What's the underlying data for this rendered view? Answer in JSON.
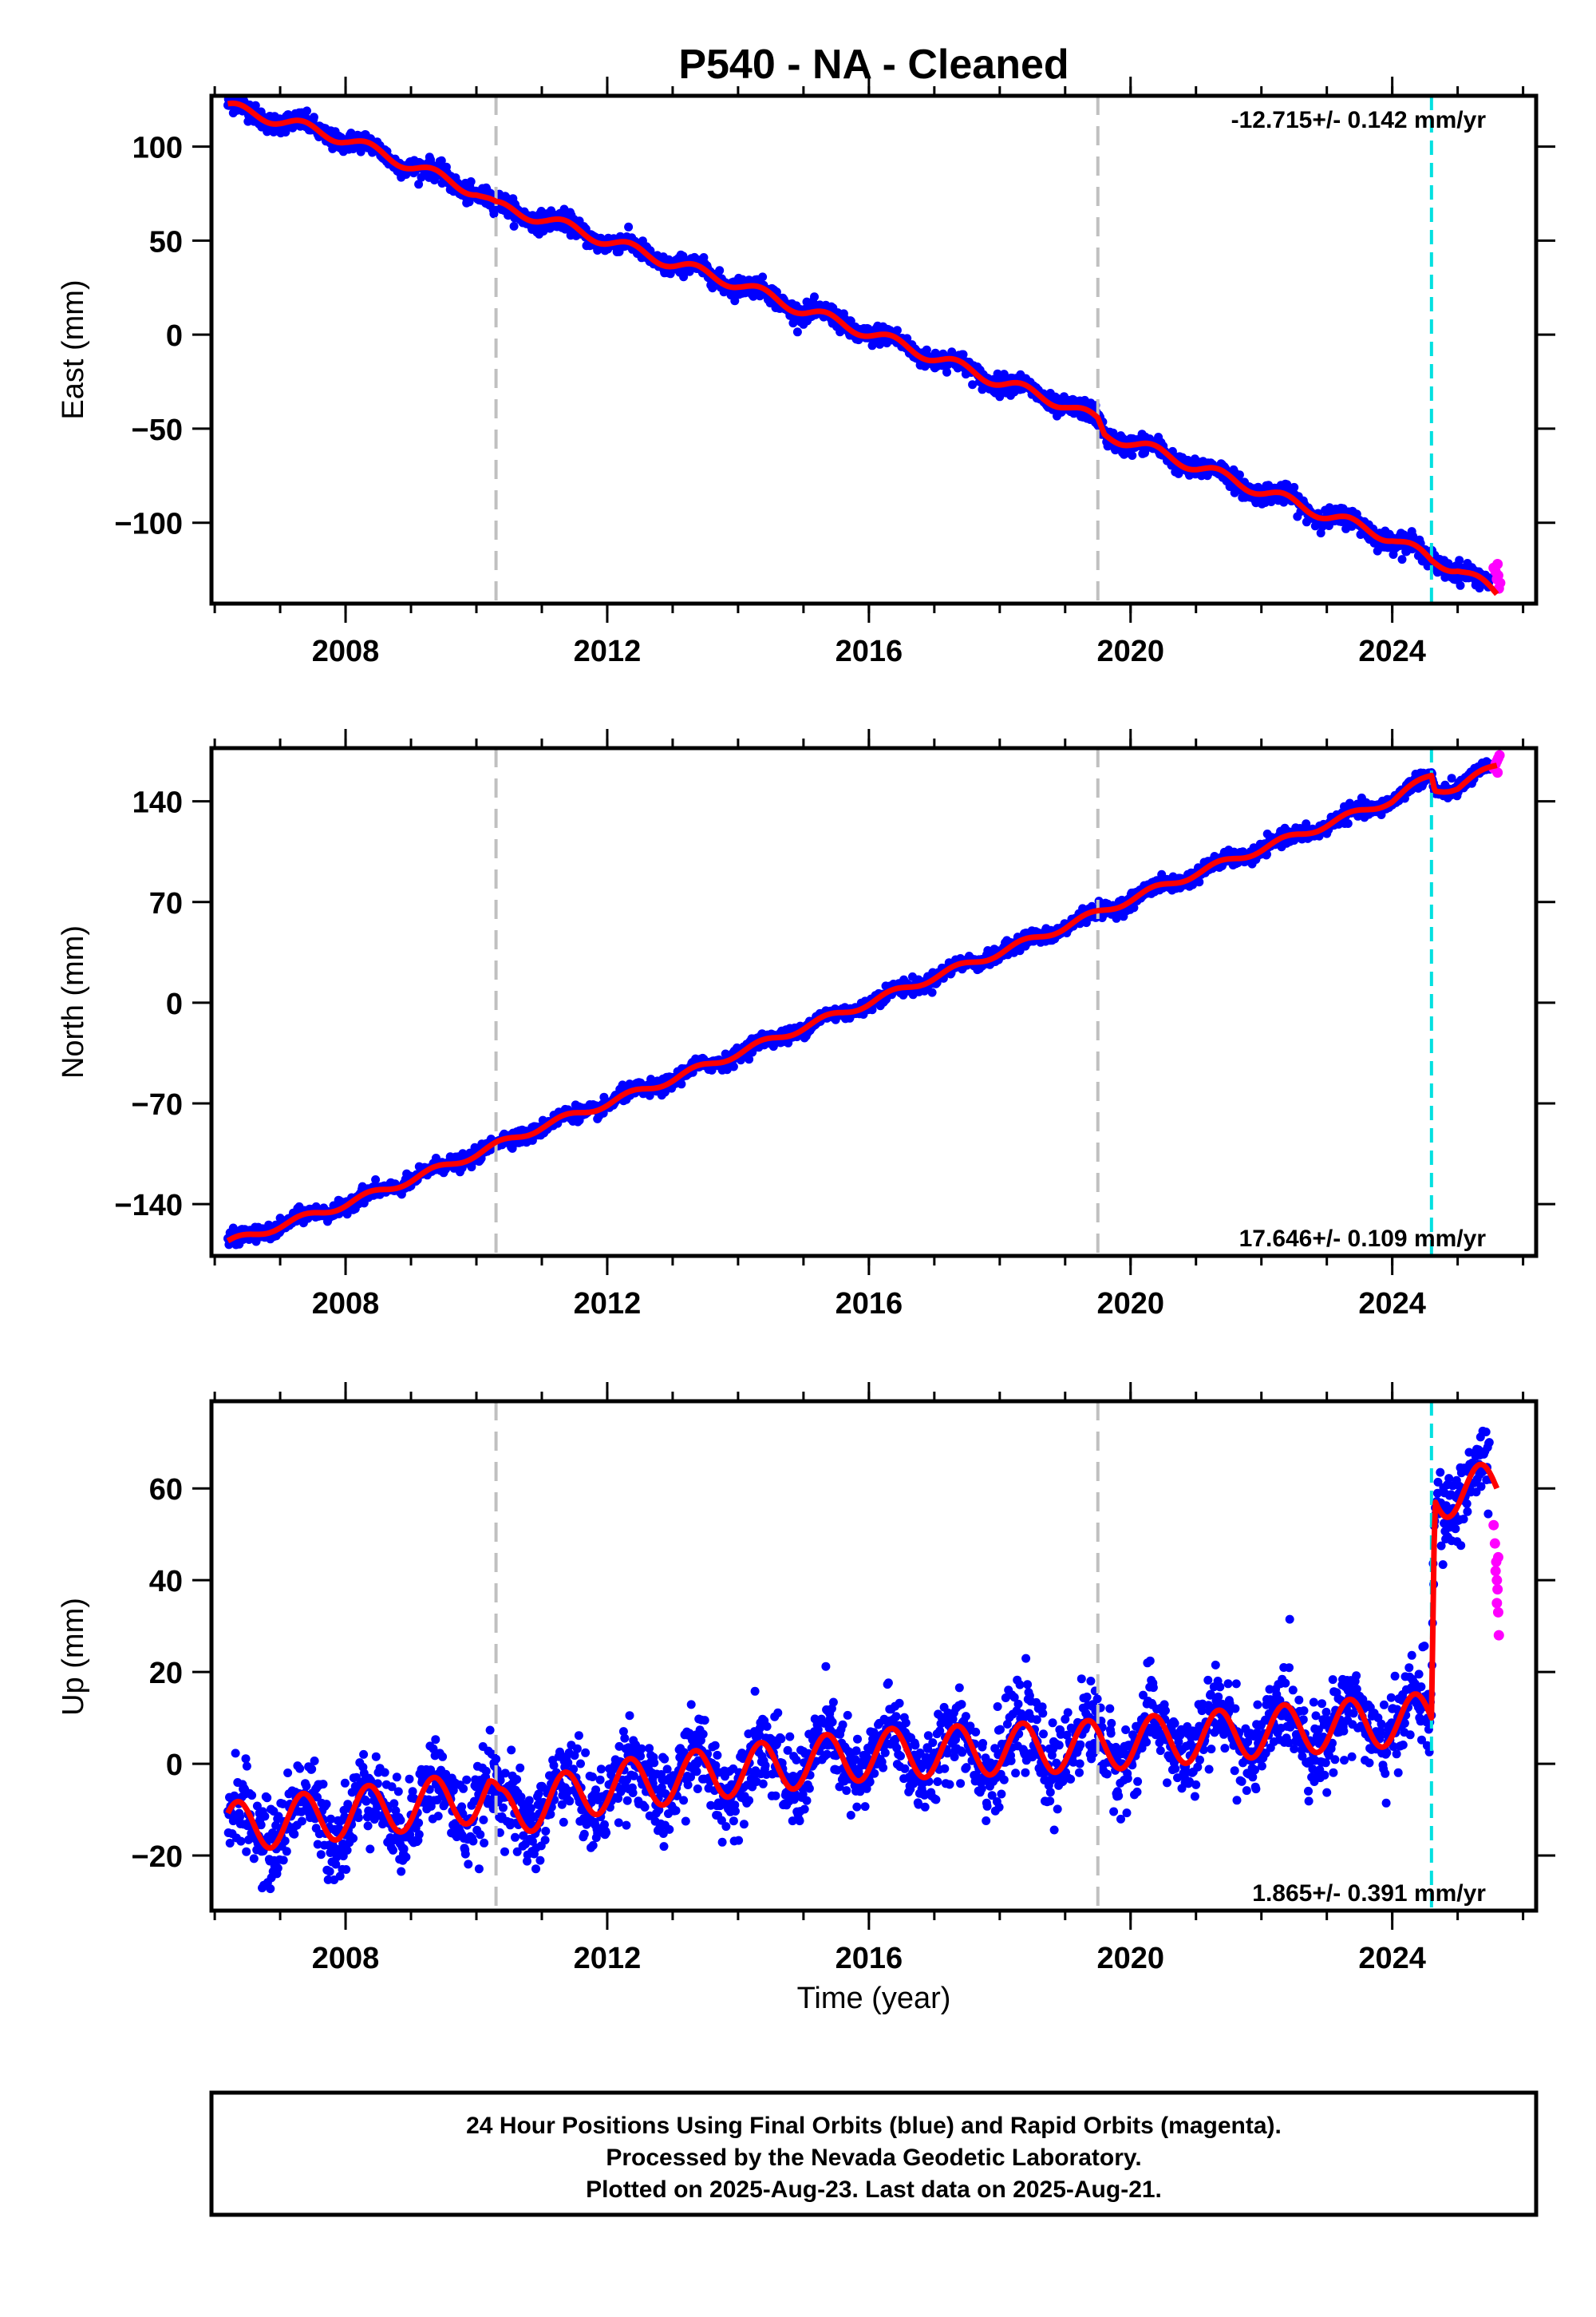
{
  "title": "P540  - NA - Cleaned",
  "colors": {
    "final_points": "#0000ff",
    "rapid_points": "#ff00ff",
    "model": "#ff0000",
    "event_gray": "#c0c0c0",
    "event_cyan": "#00e0e0",
    "frame": "#000000"
  },
  "x_axis": {
    "label": "Time (year)",
    "range": [
      2005.95,
      2026.2
    ],
    "major_ticks": [
      "2008",
      "2012",
      "2016",
      "2020",
      "2024"
    ],
    "major_values": [
      2008,
      2012,
      2016,
      2020,
      2024
    ],
    "minor_step": 1
  },
  "events": {
    "gray_dashed": [
      2010.3,
      2019.5
    ],
    "cyan_dashed": [
      2024.6
    ]
  },
  "footer": {
    "lines": [
      "24 Hour Positions Using Final Orbits (blue) and Rapid Orbits (magenta).",
      "Processed by the Nevada Geodetic Laboratory.",
      "Plotted on 2025-Aug-23. Last data on 2025-Aug-21."
    ]
  },
  "chart_data": [
    {
      "type": "scatter",
      "component": "east",
      "ylabel": "East (mm)",
      "ylim": [
        -143,
        127
      ],
      "yticks": [
        100,
        50,
        0,
        -50,
        -100
      ],
      "ytick_labels": [
        "100",
        "50",
        "0",
        "−50",
        "−100"
      ],
      "rate": "-12.715+/- 0.142 mm/yr",
      "rate_position": "top-right",
      "model_points": [
        [
          2006.2,
          121
        ],
        [
          2007.0,
          114
        ],
        [
          2008.0,
          104
        ],
        [
          2009.0,
          90
        ],
        [
          2010.0,
          76
        ],
        [
          2010.3,
          68
        ],
        [
          2011.0,
          62
        ],
        [
          2012.0,
          50
        ],
        [
          2013.0,
          38
        ],
        [
          2014.0,
          27
        ],
        [
          2015.0,
          13
        ],
        [
          2016.0,
          1
        ],
        [
          2017.0,
          -12
        ],
        [
          2018.0,
          -25
        ],
        [
          2019.0,
          -37
        ],
        [
          2019.5,
          -46
        ],
        [
          2019.6,
          -53
        ],
        [
          2020.0,
          -57
        ],
        [
          2021.0,
          -70
        ],
        [
          2022.0,
          -83
        ],
        [
          2023.0,
          -96
        ],
        [
          2024.0,
          -108
        ],
        [
          2024.6,
          -120
        ],
        [
          2025.0,
          -124
        ],
        [
          2025.6,
          -138
        ]
      ],
      "seasonal_amp": 3,
      "noise": 2.5,
      "rapid_points": [
        [
          2025.55,
          -124
        ],
        [
          2025.6,
          -130
        ],
        [
          2025.62,
          -128
        ],
        [
          2025.65,
          -132
        ],
        [
          2025.58,
          -126
        ],
        [
          2025.63,
          -135
        ],
        [
          2025.61,
          -122
        ]
      ]
    },
    {
      "type": "scatter",
      "component": "north",
      "ylabel": "North (mm)",
      "ylim": [
        -176,
        177
      ],
      "yticks": [
        140,
        70,
        0,
        -70,
        -140
      ],
      "ytick_labels": [
        "140",
        "70",
        "0",
        "−70",
        "−140"
      ],
      "rate": "17.646+/- 0.109 mm/yr",
      "rate_position": "bottom-right",
      "model_points": [
        [
          2006.2,
          -167
        ],
        [
          2007.0,
          -155
        ],
        [
          2008.0,
          -140
        ],
        [
          2009.0,
          -123
        ],
        [
          2010.0,
          -105
        ],
        [
          2011.0,
          -86
        ],
        [
          2012.0,
          -70
        ],
        [
          2013.0,
          -53
        ],
        [
          2014.0,
          -35
        ],
        [
          2015.0,
          -17
        ],
        [
          2016.0,
          0
        ],
        [
          2017.0,
          18
        ],
        [
          2018.0,
          35
        ],
        [
          2019.0,
          53
        ],
        [
          2020.0,
          72
        ],
        [
          2021.0,
          90
        ],
        [
          2022.0,
          107
        ],
        [
          2023.0,
          124
        ],
        [
          2024.0,
          141
        ],
        [
          2024.6,
          158
        ],
        [
          2024.65,
          148
        ],
        [
          2025.0,
          150
        ],
        [
          2025.6,
          165
        ]
      ],
      "seasonal_amp": 2.5,
      "noise": 2.5,
      "rapid_points": [
        [
          2025.55,
          163
        ],
        [
          2025.6,
          168
        ],
        [
          2025.62,
          170
        ],
        [
          2025.58,
          166
        ],
        [
          2025.64,
          172
        ],
        [
          2025.61,
          160
        ]
      ]
    },
    {
      "type": "scatter",
      "component": "up",
      "ylabel": "Up (mm)",
      "xlabel": "Time (year)",
      "ylim": [
        -32,
        79
      ],
      "yticks": [
        60,
        40,
        20,
        0,
        -20
      ],
      "ytick_labels": [
        "60",
        "40",
        "20",
        "0",
        "−20"
      ],
      "rate": "1.865+/- 0.391 mm/yr",
      "rate_position": "bottom-right",
      "model_points": [
        [
          2006.2,
          -14
        ],
        [
          2010.2,
          -7
        ],
        [
          2010.35,
          -11
        ],
        [
          2012.0,
          -5
        ],
        [
          2016.0,
          2
        ],
        [
          2019.5,
          4
        ],
        [
          2024.6,
          10
        ],
        [
          2024.65,
          59
        ],
        [
          2025.6,
          60
        ]
      ],
      "seasonal_amp": 5.5,
      "noise": 4.5,
      "rapid_points": [
        [
          2025.55,
          52
        ],
        [
          2025.57,
          48
        ],
        [
          2025.59,
          44
        ],
        [
          2025.6,
          40
        ],
        [
          2025.61,
          38
        ],
        [
          2025.6,
          35
        ],
        [
          2025.62,
          33
        ],
        [
          2025.63,
          28
        ],
        [
          2025.58,
          42
        ],
        [
          2025.62,
          45
        ]
      ]
    }
  ]
}
